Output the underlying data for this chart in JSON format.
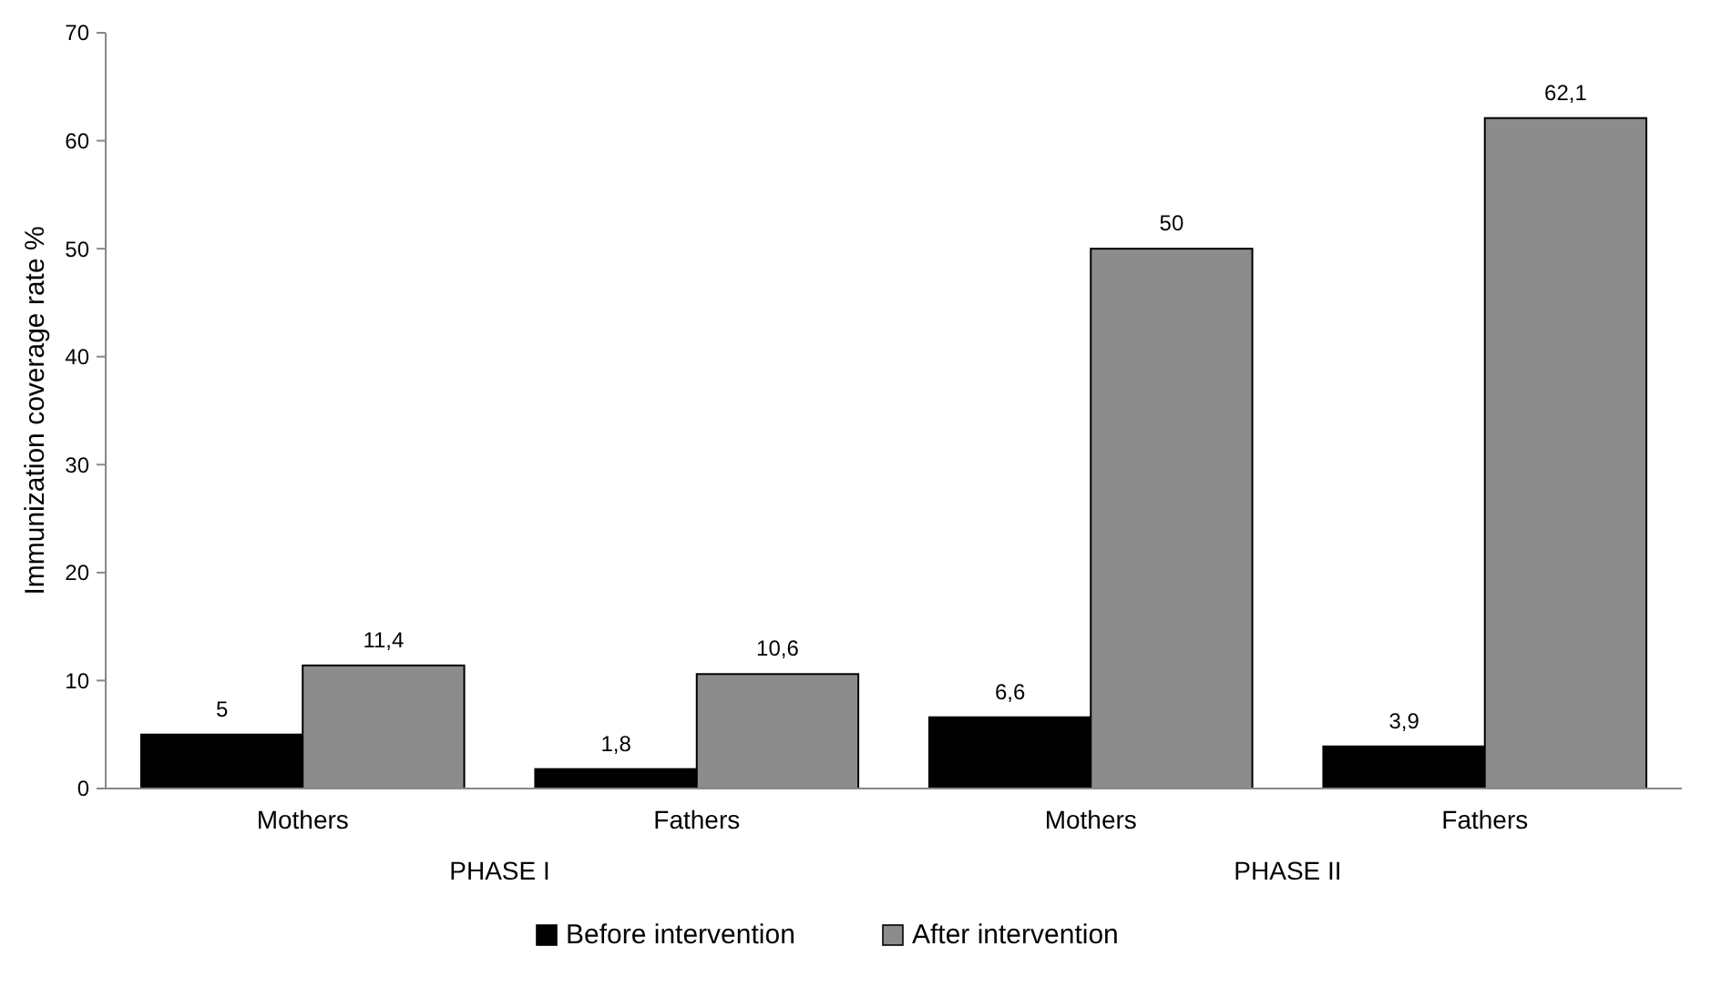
{
  "chart_data": {
    "type": "bar",
    "ylabel": "Immunization coverage rate %",
    "categories": [
      "Mothers",
      "Fathers",
      "Mothers",
      "Fathers"
    ],
    "series": [
      {
        "name": "Before intervention",
        "color": "#000000",
        "values": [
          5,
          1.8,
          6.6,
          3.9
        ],
        "value_labels": [
          "5",
          "1,8",
          "6,6",
          "3,9"
        ]
      },
      {
        "name": "After intervention",
        "color": "#8c8c8c",
        "values": [
          11.4,
          10.6,
          50,
          62.1
        ],
        "value_labels": [
          "11,4",
          "10,6",
          "50",
          "62,1"
        ]
      }
    ],
    "ylim": [
      0,
      70
    ],
    "yticks": [
      0,
      10,
      20,
      30,
      40,
      50,
      60,
      70
    ],
    "grid": false,
    "legend": "bottom",
    "annotations": [
      "PHASE I",
      "PHASE II"
    ]
  }
}
